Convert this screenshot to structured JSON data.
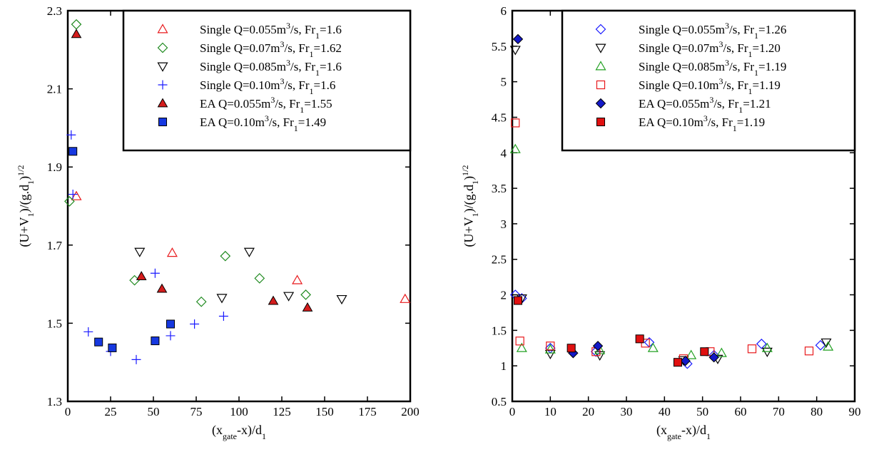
{
  "chart_data": [
    {
      "type": "scatter",
      "xlabel": "(x_gate-x)/d1",
      "ylabel": "(U+V1)/(g.d1)^1/2",
      "xlim": [
        0,
        200
      ],
      "ylim": [
        1.3,
        2.3
      ],
      "xticks": [
        "0",
        "25",
        "50",
        "75",
        "100",
        "125",
        "150",
        "175",
        "200"
      ],
      "yticks": [
        "1.3",
        "1.5",
        "1.7",
        "1.9",
        "2.1",
        "2.3"
      ],
      "legend_position": "top-right",
      "series": [
        {
          "name": "Single Q=0.055m3/s, Fr1=1.6",
          "marker": "triangle-up-open",
          "color": "#e8181b",
          "points": [
            [
              5,
              1.825
            ],
            [
              61,
              1.68
            ],
            [
              134,
              1.61
            ],
            [
              197,
              1.562
            ]
          ]
        },
        {
          "name": "Single Q=0.07m3/s, Fr1=1.62",
          "marker": "diamond-open",
          "color": "#1f8a1f",
          "points": [
            [
              1,
              1.812
            ],
            [
              5,
              2.265
            ],
            [
              39,
              1.61
            ],
            [
              78,
              1.555
            ],
            [
              92,
              1.672
            ],
            [
              112,
              1.615
            ],
            [
              139,
              1.573
            ]
          ]
        },
        {
          "name": "Single Q=0.085m3/s, Fr1=1.6",
          "marker": "triangle-down-open",
          "color": "#000000",
          "points": [
            [
              42,
              1.683
            ],
            [
              90,
              1.565
            ],
            [
              106,
              1.683
            ],
            [
              129,
              1.57
            ],
            [
              160,
              1.562
            ]
          ]
        },
        {
          "name": "Single Q=0.10m3/s, Fr1=1.6",
          "marker": "plus",
          "color": "#1a1aff",
          "points": [
            [
              2,
              1.982
            ],
            [
              3,
              1.83
            ],
            [
              12,
              1.478
            ],
            [
              25,
              1.428
            ],
            [
              40,
              1.407
            ],
            [
              51,
              1.628
            ],
            [
              60,
              1.468
            ],
            [
              74,
              1.498
            ],
            [
              91,
              1.518
            ]
          ]
        },
        {
          "name": "EA Q=0.055m3/s, Fr1=1.55",
          "marker": "triangle-up-filled",
          "color": "#d41c1c",
          "points": [
            [
              5,
              2.24
            ],
            [
              43,
              1.62
            ],
            [
              55,
              1.588
            ],
            [
              120,
              1.557
            ],
            [
              140,
              1.54
            ]
          ]
        },
        {
          "name": "EA Q=0.10m3/s, Fr1=1.49",
          "marker": "square-filled",
          "color": "#1638e0",
          "points": [
            [
              3,
              1.94
            ],
            [
              18,
              1.452
            ],
            [
              26,
              1.437
            ],
            [
              51,
              1.455
            ],
            [
              60,
              1.498
            ]
          ]
        }
      ],
      "legend_labels": [
        {
          "pre": "Single Q=0.055m",
          "sup": "3",
          "mid": "/s, Fr",
          "sub": "1",
          "post": "=1.6"
        },
        {
          "pre": "Single Q=0.07m",
          "sup": "3",
          "mid": "/s, Fr",
          "sub": "1",
          "post": "=1.62"
        },
        {
          "pre": "Single Q=0.085m",
          "sup": "3",
          "mid": "/s, Fr",
          "sub": "1",
          "post": "=1.6"
        },
        {
          "pre": "Single Q=0.10m",
          "sup": "3",
          "mid": "/s, Fr",
          "sub": "1",
          "post": "=1.6"
        },
        {
          "pre": "EA Q=0.055m",
          "sup": "3",
          "mid": "/s, Fr",
          "sub": "1",
          "post": "=1.55"
        },
        {
          "pre": "EA Q=0.10m",
          "sup": "3",
          "mid": "/s, Fr",
          "sub": "1",
          "post": "=1.49"
        }
      ]
    },
    {
      "type": "scatter",
      "xlabel": "(x_gate-x)/d1",
      "ylabel": "(U+V1)/(g.d1)^1/2",
      "xlim": [
        0,
        90
      ],
      "ylim": [
        0.5,
        6
      ],
      "xticks": [
        "0",
        "10",
        "20",
        "30",
        "40",
        "50",
        "60",
        "70",
        "80",
        "90"
      ],
      "yticks": [
        "0.5",
        "1",
        "1.5",
        "2",
        "2.5",
        "3",
        "3.5",
        "4",
        "4.5",
        "5",
        "5.5",
        "6"
      ],
      "legend_position": "top-right",
      "series": [
        {
          "name": "Single Q=0.055m3/s, Fr1=1.26",
          "marker": "diamond-open",
          "color": "#1a1aff",
          "points": [
            [
              0.8,
              2.0
            ],
            [
              2.5,
              1.95
            ],
            [
              10,
              1.25
            ],
            [
              22,
              1.2
            ],
            [
              36,
              1.33
            ],
            [
              46,
              1.03
            ],
            [
              53,
              1.15
            ],
            [
              65.5,
              1.31
            ],
            [
              81,
              1.29
            ]
          ]
        },
        {
          "name": "Single Q=0.07m3/s, Fr1=1.20",
          "marker": "triangle-down-open",
          "color": "#000000",
          "points": [
            [
              0.8,
              5.45
            ],
            [
              2.5,
              1.95
            ],
            [
              10,
              1.17
            ],
            [
              23,
              1.15
            ],
            [
              45,
              1.08
            ],
            [
              54,
              1.1
            ],
            [
              67,
              1.2
            ],
            [
              82.5,
              1.33
            ]
          ]
        },
        {
          "name": "Single Q=0.085m3/s, Fr1=1.19",
          "marker": "triangle-up-open",
          "color": "#22a022",
          "points": [
            [
              0.8,
              4.05
            ],
            [
              2.5,
              1.25
            ],
            [
              10,
              1.23
            ],
            [
              23,
              1.22
            ],
            [
              37,
              1.25
            ],
            [
              47,
              1.15
            ],
            [
              55,
              1.18
            ],
            [
              67,
              1.25
            ],
            [
              83,
              1.27
            ]
          ]
        },
        {
          "name": "Single Q=0.10m3/s, Fr1=1.19",
          "marker": "square-open",
          "color": "#e8181b",
          "points": [
            [
              0.8,
              4.42
            ],
            [
              2,
              1.35
            ],
            [
              10,
              1.28
            ],
            [
              22,
              1.2
            ],
            [
              35,
              1.32
            ],
            [
              45,
              1.1
            ],
            [
              52,
              1.2
            ],
            [
              63,
              1.24
            ],
            [
              78,
              1.21
            ]
          ]
        },
        {
          "name": "EA Q=0.055m3/s, Fr1=1.21",
          "marker": "diamond-filled",
          "color": "#1419c8",
          "points": [
            [
              1.5,
              5.6
            ],
            [
              16,
              1.18
            ],
            [
              22.5,
              1.28
            ],
            [
              45.5,
              1.07
            ],
            [
              53,
              1.12
            ]
          ]
        },
        {
          "name": "EA Q=0.10m3/s, Fr1=1.19",
          "marker": "square-filled",
          "color": "#e01010",
          "points": [
            [
              1.5,
              1.92
            ],
            [
              15.5,
              1.25
            ],
            [
              33.5,
              1.38
            ],
            [
              43.5,
              1.05
            ],
            [
              50.5,
              1.2
            ]
          ]
        }
      ],
      "legend_labels": [
        {
          "pre": "Single Q=0.055m",
          "sup": "3",
          "mid": "/s, Fr",
          "sub": "1",
          "post": "=1.26"
        },
        {
          "pre": "Single Q=0.07m",
          "sup": "3",
          "mid": "/s, Fr",
          "sub": "1",
          "post": "=1.20"
        },
        {
          "pre": "Single Q=0.085m",
          "sup": "3",
          "mid": "/s, Fr",
          "sub": "1",
          "post": "=1.19"
        },
        {
          "pre": "Single Q=0.10m",
          "sup": "3",
          "mid": "/s, Fr",
          "sub": "1",
          "post": "=1.19"
        },
        {
          "pre": "EA Q=0.055m",
          "sup": "3",
          "mid": "/s, Fr",
          "sub": "1",
          "post": "=1.21"
        },
        {
          "pre": "EA Q=0.10m",
          "sup": "3",
          "mid": "/s, Fr",
          "sub": "1",
          "post": "=1.19"
        }
      ]
    }
  ]
}
